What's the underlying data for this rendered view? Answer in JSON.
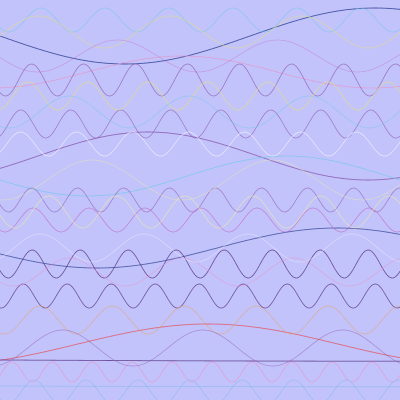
{
  "background": "#c3c3fb",
  "palette": {
    "dark_violet": "#5a3a8a",
    "navy": "#3a4a9a",
    "purple": "#8a5ab0",
    "magenta": "#c060c0",
    "pink": "#e890c8",
    "red": "#e05a6a",
    "orange": "#e8a060",
    "yellow": "#e8e070",
    "light_yellow": "#f0f0a0",
    "cyan": "#70c8e8",
    "light_blue": "#8ab8f0",
    "white": "#f4f4ff"
  },
  "waves": [
    {
      "name": "wave-long-navy-top",
      "color": "navy",
      "period_frac": 1.25,
      "amp_frac": 0.07,
      "center_frac": 0.09,
      "phase": 0.0,
      "opacity": 0.9,
      "width": 0.9
    },
    {
      "name": "wave-long-purple-mid",
      "color": "purple",
      "period_frac": 1.1,
      "amp_frac": 0.06,
      "center_frac": 0.39,
      "phase": 2.6,
      "opacity": 0.85,
      "width": 0.9
    },
    {
      "name": "wave-long-navy-low",
      "color": "navy",
      "period_frac": 1.2,
      "amp_frac": 0.05,
      "center_frac": 0.62,
      "phase": 0.3,
      "opacity": 0.8,
      "width": 0.9
    },
    {
      "name": "wave-long-red-bottom",
      "color": "red",
      "period_frac": 1.3,
      "amp_frac": 0.05,
      "center_frac": 0.86,
      "phase": 2.2,
      "opacity": 0.85,
      "width": 0.9
    },
    {
      "name": "wave-long-cyan",
      "color": "cyan",
      "period_frac": 1.0,
      "amp_frac": 0.05,
      "center_frac": 0.44,
      "phase": 0.2,
      "opacity": 0.75,
      "width": 0.8
    },
    {
      "name": "wave-long-pink",
      "color": "pink",
      "period_frac": 0.95,
      "amp_frac": 0.04,
      "center_frac": 0.18,
      "phase": 1.7,
      "opacity": 0.7,
      "width": 0.8
    },
    {
      "name": "wave-flat-violet",
      "color": "dark_violet",
      "period_frac": 4.0,
      "amp_frac": 0.003,
      "center_frac": 0.9,
      "phase": 0.0,
      "opacity": 0.8,
      "width": 0.9
    },
    {
      "name": "wave-flat-blue",
      "color": "light_blue",
      "period_frac": 4.0,
      "amp_frac": 0.002,
      "center_frac": 0.965,
      "phase": 0.0,
      "opacity": 0.7,
      "width": 0.8
    },
    {
      "name": "wave-short-violet-a",
      "color": "dark_violet",
      "period_frac": 0.12,
      "amp_frac": 0.035,
      "center_frac": 0.66,
      "phase": 0.5,
      "opacity": 0.85,
      "width": 0.8
    },
    {
      "name": "wave-short-violet-b",
      "color": "dark_violet",
      "period_frac": 0.11,
      "amp_frac": 0.03,
      "center_frac": 0.74,
      "phase": 1.4,
      "opacity": 0.8,
      "width": 0.8
    },
    {
      "name": "wave-short-purple-a",
      "color": "purple",
      "period_frac": 0.13,
      "amp_frac": 0.04,
      "center_frac": 0.2,
      "phase": 0.9,
      "opacity": 0.8,
      "width": 0.7
    },
    {
      "name": "wave-short-purple-b",
      "color": "purple",
      "period_frac": 0.125,
      "amp_frac": 0.035,
      "center_frac": 0.31,
      "phase": 2.1,
      "opacity": 0.75,
      "width": 0.7
    },
    {
      "name": "wave-short-purple-c",
      "color": "purple",
      "period_frac": 0.115,
      "amp_frac": 0.03,
      "center_frac": 0.5,
      "phase": 0.4,
      "opacity": 0.7,
      "width": 0.7
    },
    {
      "name": "wave-short-magenta",
      "color": "magenta",
      "period_frac": 0.14,
      "amp_frac": 0.03,
      "center_frac": 0.55,
      "phase": 1.0,
      "opacity": 0.7,
      "width": 0.7
    },
    {
      "name": "wave-short-pink",
      "color": "pink",
      "period_frac": 0.1,
      "amp_frac": 0.025,
      "center_frac": 0.93,
      "phase": 2.8,
      "opacity": 0.75,
      "width": 0.7
    },
    {
      "name": "wave-short-yellow-a",
      "color": "yellow",
      "period_frac": 0.15,
      "amp_frac": 0.035,
      "center_frac": 0.24,
      "phase": 1.8,
      "opacity": 0.75,
      "width": 0.7
    },
    {
      "name": "wave-short-yellow-b",
      "color": "light_yellow",
      "period_frac": 0.17,
      "amp_frac": 0.04,
      "center_frac": 0.53,
      "phase": 0.2,
      "opacity": 0.7,
      "width": 0.7
    },
    {
      "name": "wave-short-white",
      "color": "white",
      "period_frac": 0.14,
      "amp_frac": 0.03,
      "center_frac": 0.36,
      "phase": 2.4,
      "opacity": 0.8,
      "width": 0.7
    },
    {
      "name": "wave-short-cyan",
      "color": "cyan",
      "period_frac": 0.16,
      "amp_frac": 0.03,
      "center_frac": 0.05,
      "phase": 0.7,
      "opacity": 0.7,
      "width": 0.7
    },
    {
      "name": "wave-short-orange",
      "color": "orange",
      "period_frac": 0.18,
      "amp_frac": 0.035,
      "center_frac": 0.8,
      "phase": 1.2,
      "opacity": 0.65,
      "width": 0.7
    },
    {
      "name": "wave-short-blue",
      "color": "light_blue",
      "period_frac": 0.13,
      "amp_frac": 0.03,
      "center_frac": 0.98,
      "phase": 0.6,
      "opacity": 0.75,
      "width": 0.7
    },
    {
      "name": "wave-mid-cyan",
      "color": "cyan",
      "period_frac": 0.3,
      "amp_frac": 0.04,
      "center_frac": 0.28,
      "phase": 1.1,
      "opacity": 0.6,
      "width": 0.7
    },
    {
      "name": "wave-mid-yellow",
      "color": "yellow",
      "period_frac": 0.33,
      "amp_frac": 0.04,
      "center_frac": 0.08,
      "phase": 2.9,
      "opacity": 0.6,
      "width": 0.7
    },
    {
      "name": "wave-mid-pink",
      "color": "pink",
      "period_frac": 0.28,
      "amp_frac": 0.035,
      "center_frac": 0.68,
      "phase": 0.8,
      "opacity": 0.6,
      "width": 0.7
    },
    {
      "name": "wave-mid-purple",
      "color": "purple",
      "period_frac": 0.35,
      "amp_frac": 0.045,
      "center_frac": 0.87,
      "phase": 1.9,
      "opacity": 0.55,
      "width": 0.7
    },
    {
      "name": "wave-mid-white",
      "color": "white",
      "period_frac": 0.26,
      "amp_frac": 0.035,
      "center_frac": 0.62,
      "phase": 2.3,
      "opacity": 0.55,
      "width": 0.6
    },
    {
      "name": "wave-mid-magenta",
      "color": "magenta",
      "period_frac": 0.4,
      "amp_frac": 0.04,
      "center_frac": 0.14,
      "phase": 0.1,
      "opacity": 0.5,
      "width": 0.6
    },
    {
      "name": "wave-mid-light-yellow",
      "color": "light_yellow",
      "period_frac": 0.45,
      "amp_frac": 0.05,
      "center_frac": 0.45,
      "phase": 1.5,
      "opacity": 0.55,
      "width": 0.6
    }
  ]
}
